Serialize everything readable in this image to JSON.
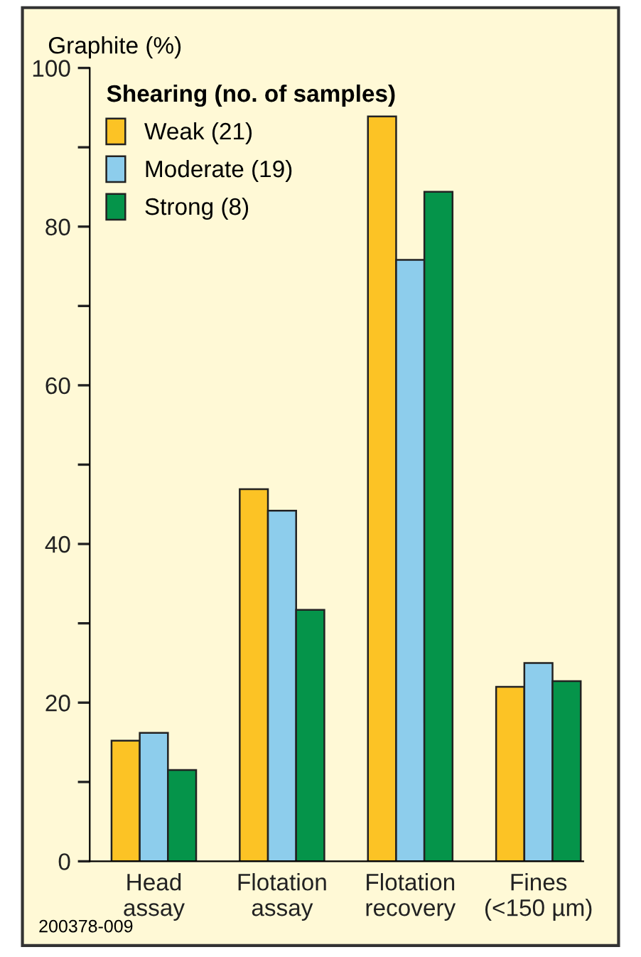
{
  "chart_data": {
    "type": "bar",
    "ylabel": "Graphite (%)",
    "legend_title": "Shearing (no. of samples)",
    "categories": [
      "Head\nassay",
      "Flotation\nassay",
      "Flotation\nrecovery",
      "Fines\n(<150 µm)"
    ],
    "series": [
      {
        "name": "Weak (21)",
        "color": "#fcc325",
        "values": [
          15.2,
          46.9,
          93.9,
          22.0
        ]
      },
      {
        "name": "Moderate (19)",
        "color": "#8dcdec",
        "values": [
          16.2,
          44.2,
          75.8,
          25.0
        ]
      },
      {
        "name": "Strong (8)",
        "color": "#05944a",
        "values": [
          11.5,
          31.7,
          84.4,
          22.7
        ]
      }
    ],
    "ylim": [
      0,
      100
    ],
    "yticks": [
      0,
      {
        "value": 10,
        "label": null
      },
      20,
      {
        "value": 30,
        "label": null
      },
      40,
      {
        "value": 50,
        "label": null
      },
      60,
      {
        "value": 70,
        "label": null
      },
      80,
      {
        "value": 90,
        "label": null
      },
      100
    ],
    "grid": false,
    "legend": "top left",
    "annotations": [
      "200378-009"
    ]
  }
}
